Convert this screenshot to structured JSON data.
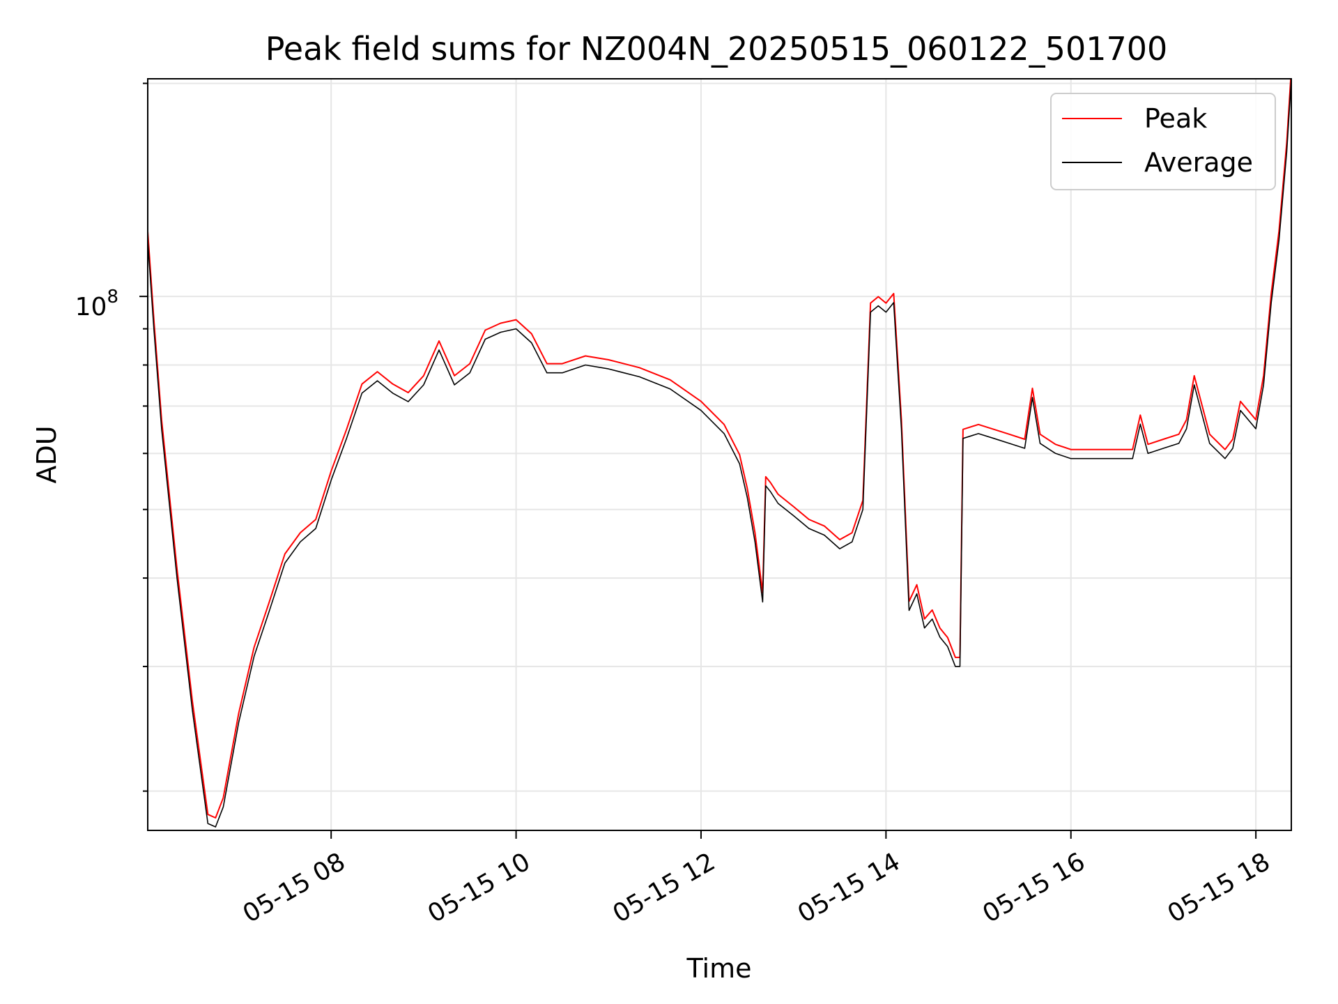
{
  "chart_data": {
    "type": "line",
    "title": "Peak field sums for NZ004N_20250515_060122_501700",
    "xlabel": "Time",
    "ylabel": "ADU",
    "y_scale": "log",
    "xlim": [
      "2025-05-15 06:01",
      "2025-05-15 18:23"
    ],
    "ylim": [
      17600000.0,
      203000000.0
    ],
    "x_ticks": [
      "05-15 08",
      "05-15 10",
      "05-15 12",
      "05-15 14",
      "05-15 16",
      "05-15 18"
    ],
    "x_tick_times": [
      "2025-05-15 08:00",
      "2025-05-15 10:00",
      "2025-05-15 12:00",
      "2025-05-15 14:00",
      "2025-05-15 16:00",
      "2025-05-15 18:00"
    ],
    "y_major_tick": {
      "value": 100000000.0,
      "label_base": "10",
      "label_exp": "8"
    },
    "y_minor_ticks": [
      20000000.0,
      30000000.0,
      40000000.0,
      50000000.0,
      60000000.0,
      70000000.0,
      80000000.0,
      90000000.0,
      200000000.0
    ],
    "grid": true,
    "legend_position": "top-right",
    "series": [
      {
        "name": "Peak",
        "color": "#ff0000",
        "offset": 1.03
      },
      {
        "name": "Average",
        "color": "#000000",
        "offset": 1.0
      }
    ],
    "x": [
      "2025-05-15 06:01",
      "2025-05-15 06:05",
      "2025-05-15 06:10",
      "2025-05-15 06:20",
      "2025-05-15 06:30",
      "2025-05-15 06:40",
      "2025-05-15 06:45",
      "2025-05-15 06:50",
      "2025-05-15 07:00",
      "2025-05-15 07:10",
      "2025-05-15 07:20",
      "2025-05-15 07:30",
      "2025-05-15 07:40",
      "2025-05-15 07:50",
      "2025-05-15 08:00",
      "2025-05-15 08:10",
      "2025-05-15 08:20",
      "2025-05-15 08:30",
      "2025-05-15 08:40",
      "2025-05-15 08:50",
      "2025-05-15 09:00",
      "2025-05-15 09:10",
      "2025-05-15 09:20",
      "2025-05-15 09:30",
      "2025-05-15 09:40",
      "2025-05-15 09:50",
      "2025-05-15 10:00",
      "2025-05-15 10:10",
      "2025-05-15 10:20",
      "2025-05-15 10:30",
      "2025-05-15 10:45",
      "2025-05-15 11:00",
      "2025-05-15 11:20",
      "2025-05-15 11:40",
      "2025-05-15 12:00",
      "2025-05-15 12:15",
      "2025-05-15 12:25",
      "2025-05-15 12:30",
      "2025-05-15 12:35",
      "2025-05-15 12:40",
      "2025-05-15 12:42",
      "2025-05-15 12:45",
      "2025-05-15 12:50",
      "2025-05-15 13:00",
      "2025-05-15 13:10",
      "2025-05-15 13:20",
      "2025-05-15 13:30",
      "2025-05-15 13:38",
      "2025-05-15 13:45",
      "2025-05-15 13:50",
      "2025-05-15 13:55",
      "2025-05-15 14:00",
      "2025-05-15 14:05",
      "2025-05-15 14:10",
      "2025-05-15 14:15",
      "2025-05-15 14:20",
      "2025-05-15 14:25",
      "2025-05-15 14:30",
      "2025-05-15 14:35",
      "2025-05-15 14:40",
      "2025-05-15 14:45",
      "2025-05-15 14:48",
      "2025-05-15 14:50",
      "2025-05-15 15:00",
      "2025-05-15 15:10",
      "2025-05-15 15:20",
      "2025-05-15 15:30",
      "2025-05-15 15:35",
      "2025-05-15 15:40",
      "2025-05-15 15:50",
      "2025-05-15 16:00",
      "2025-05-15 16:20",
      "2025-05-15 16:40",
      "2025-05-15 16:45",
      "2025-05-15 16:50",
      "2025-05-15 17:00",
      "2025-05-15 17:10",
      "2025-05-15 17:15",
      "2025-05-15 17:20",
      "2025-05-15 17:30",
      "2025-05-15 17:40",
      "2025-05-15 17:45",
      "2025-05-15 17:50",
      "2025-05-15 18:00",
      "2025-05-15 18:05",
      "2025-05-15 18:10",
      "2025-05-15 18:15",
      "2025-05-15 18:20",
      "2025-05-15 18:23"
    ],
    "values": [
      120000000.0,
      90000000.0,
      65000000.0,
      40000000.0,
      26000000.0,
      18000000.0,
      17800000.0,
      19000000.0,
      25000000.0,
      31000000.0,
      36000000.0,
      42000000.0,
      45000000.0,
      47000000.0,
      55000000.0,
      63000000.0,
      73000000.0,
      76000000.0,
      73000000.0,
      71000000.0,
      75000000.0,
      84000000.0,
      75000000.0,
      78000000.0,
      87000000.0,
      89000000.0,
      90000000.0,
      86000000.0,
      78000000.0,
      78000000.0,
      80000000.0,
      79000000.0,
      77000000.0,
      74000000.0,
      69000000.0,
      64000000.0,
      58000000.0,
      52000000.0,
      45000000.0,
      37000000.0,
      54000000.0,
      53000000.0,
      51000000.0,
      49000000.0,
      47000000.0,
      46000000.0,
      44000000.0,
      45000000.0,
      50000000.0,
      95000000.0,
      97000000.0,
      95000000.0,
      98000000.0,
      65000000.0,
      36000000.0,
      38000000.0,
      34000000.0,
      35000000.0,
      33000000.0,
      32000000.0,
      30000000.0,
      30000000.0,
      63000000.0,
      64000000.0,
      63000000.0,
      62000000.0,
      61000000.0,
      72000000.0,
      62000000.0,
      60000000.0,
      59000000.0,
      59000000.0,
      59000000.0,
      66000000.0,
      60000000.0,
      61000000.0,
      62000000.0,
      65000000.0,
      75000000.0,
      62000000.0,
      59000000.0,
      61000000.0,
      69000000.0,
      65000000.0,
      75000000.0,
      98000000.0,
      120000000.0,
      160000000.0,
      203000000.0
    ]
  }
}
